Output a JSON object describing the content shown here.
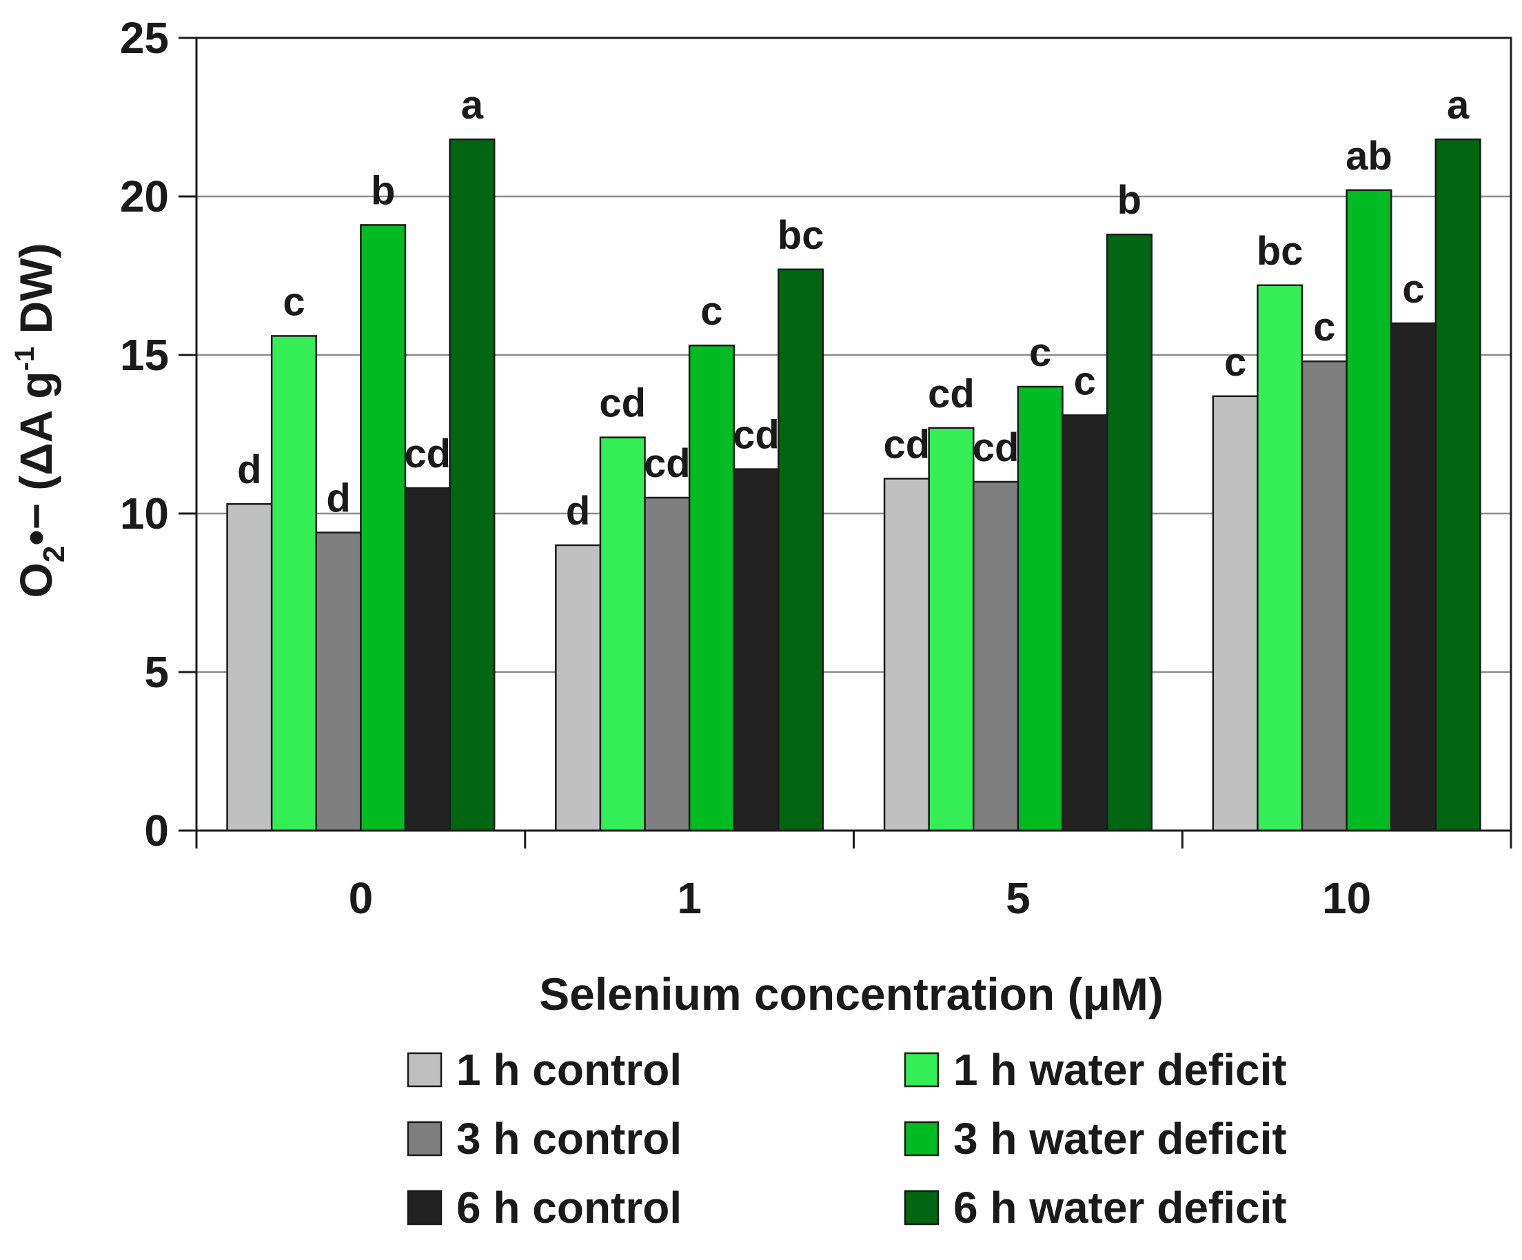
{
  "chart_data": {
    "type": "bar",
    "title": "",
    "xlabel": "Selenium concentration (μM)",
    "ylabel": {
      "main": "O",
      "sub": "2",
      "radical": "•−",
      "unit_open": " (ΔA g",
      "sup": "-1",
      "unit_close": " DW)"
    },
    "ylim": [
      0,
      25
    ],
    "yticks": [
      0,
      5,
      10,
      15,
      20,
      25
    ],
    "grid": true,
    "legend_position": "bottom",
    "categories": [
      "0",
      "1",
      "5",
      "10"
    ],
    "series": [
      {
        "name": "1 h control",
        "color": "#c0c0c0",
        "values": [
          10.3,
          9.0,
          11.1,
          13.7
        ],
        "labels": [
          "d",
          "d",
          "cd",
          "c"
        ]
      },
      {
        "name": "1 h water deficit",
        "color": "#33ee55",
        "values": [
          15.6,
          12.4,
          12.7,
          17.2
        ],
        "labels": [
          "c",
          "cd",
          "cd",
          "bc"
        ]
      },
      {
        "name": "3 h control",
        "color": "#7f7f7f",
        "values": [
          9.4,
          10.5,
          11.0,
          14.8
        ],
        "labels": [
          "d",
          "cd",
          "cd",
          "c"
        ]
      },
      {
        "name": "3 h water deficit",
        "color": "#00bb22",
        "values": [
          19.1,
          15.3,
          14.0,
          20.2
        ],
        "labels": [
          "b",
          "c",
          "c",
          "ab"
        ]
      },
      {
        "name": "6 h control",
        "color": "#222222",
        "values": [
          10.8,
          11.4,
          13.1,
          16.0
        ],
        "labels": [
          "cd",
          "cd",
          "c",
          "c"
        ]
      },
      {
        "name": "6 h water deficit",
        "color": "#006611",
        "values": [
          21.8,
          17.7,
          18.8,
          21.8
        ],
        "labels": [
          "a",
          "bc",
          "b",
          "a"
        ]
      }
    ]
  }
}
